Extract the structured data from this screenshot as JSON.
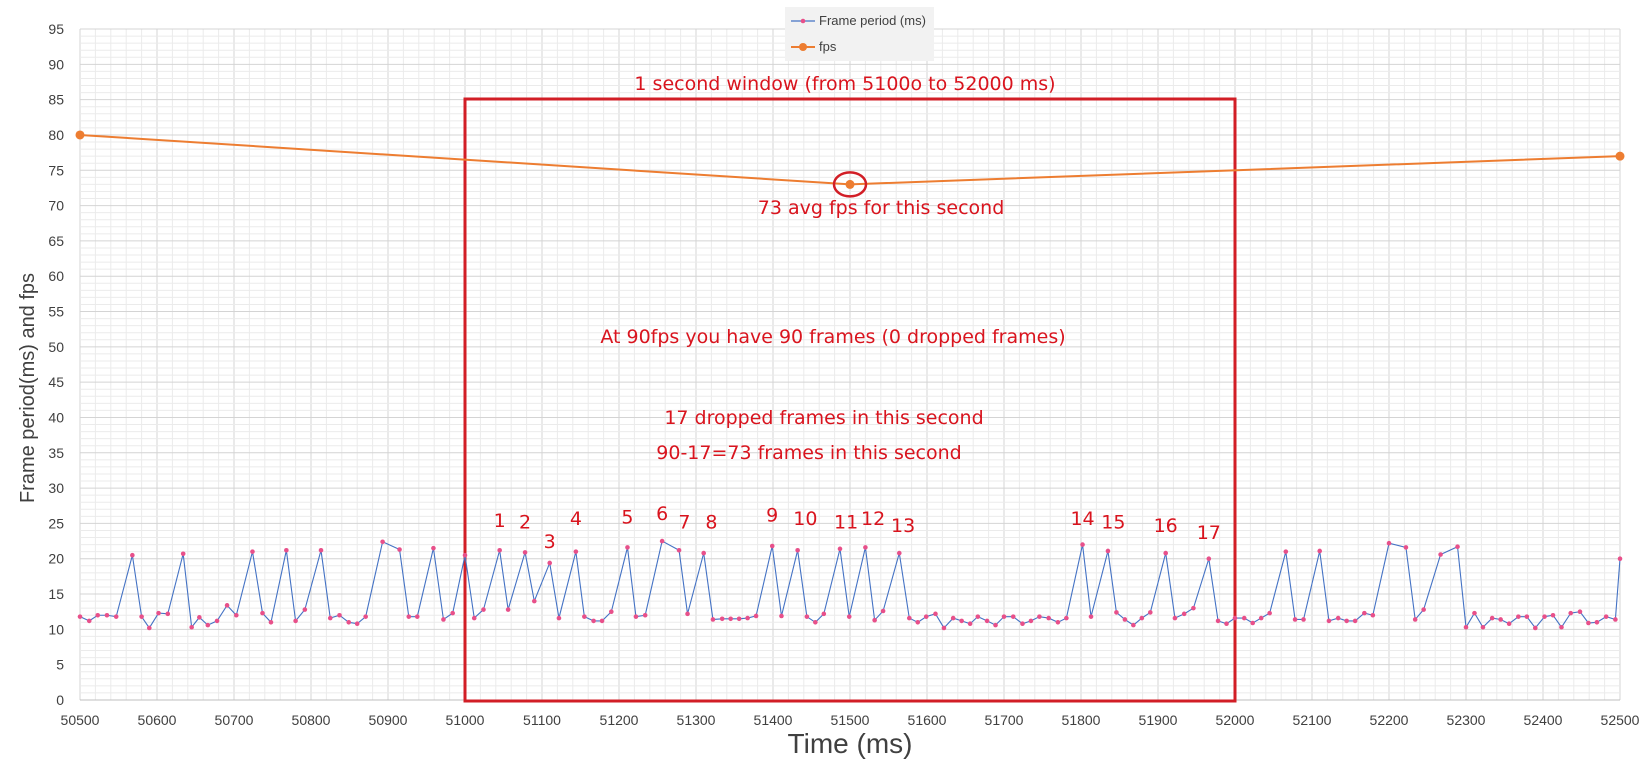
{
  "chart_data": {
    "type": "line",
    "xlabel": "Time (ms)",
    "ylabel": "Frame period(ms) and fps",
    "xlim": [
      50500,
      52500
    ],
    "ylim": [
      0,
      95
    ],
    "x_ticks": [
      50500,
      50600,
      50700,
      50800,
      50900,
      51000,
      51100,
      51200,
      51300,
      51400,
      51500,
      51600,
      51700,
      51800,
      51900,
      52000,
      52100,
      52200,
      52300,
      52400,
      52500
    ],
    "y_ticks": [
      0,
      5,
      10,
      15,
      20,
      25,
      30,
      35,
      40,
      45,
      50,
      55,
      60,
      65,
      70,
      75,
      80,
      85,
      90,
      95
    ],
    "grid": true,
    "legend_position": "top-center",
    "series": [
      {
        "name": "Frame period (ms)",
        "color": "#4472c4",
        "marker_color": "#e8508a",
        "points": [
          [
            50500,
            11.8
          ],
          [
            50512,
            11.2
          ],
          [
            50523,
            12
          ],
          [
            50535,
            12
          ],
          [
            50547,
            11.8
          ],
          [
            50568,
            20.5
          ],
          [
            50580,
            11.8
          ],
          [
            50590,
            10.2
          ],
          [
            50602,
            12.3
          ],
          [
            50614,
            12.2
          ],
          [
            50634,
            20.7
          ],
          [
            50645,
            10.3
          ],
          [
            50655,
            11.7
          ],
          [
            50666,
            10.6
          ],
          [
            50678,
            11.2
          ],
          [
            50691,
            13.4
          ],
          [
            50703,
            12
          ],
          [
            50724,
            21
          ],
          [
            50737,
            12.3
          ],
          [
            50748,
            11
          ],
          [
            50768,
            21.2
          ],
          [
            50780,
            11.2
          ],
          [
            50792,
            12.8
          ],
          [
            50813,
            21.2
          ],
          [
            50825,
            11.6
          ],
          [
            50837,
            12
          ],
          [
            50849,
            11
          ],
          [
            50860,
            10.8
          ],
          [
            50871,
            11.8
          ],
          [
            50893,
            22.4
          ],
          [
            50915,
            21.3
          ],
          [
            50927,
            11.8
          ],
          [
            50938,
            11.8
          ],
          [
            50959,
            21.5
          ],
          [
            50972,
            11.4
          ],
          [
            50984,
            12.3
          ],
          [
            51000,
            20.5
          ],
          [
            51012,
            11.6
          ],
          [
            51024,
            12.8
          ],
          [
            51045,
            21.2
          ],
          [
            51056,
            12.8
          ],
          [
            51078,
            20.9
          ],
          [
            51090,
            14
          ],
          [
            51110,
            19.4
          ],
          [
            51122,
            11.6
          ],
          [
            51144,
            21
          ],
          [
            51155,
            11.8
          ],
          [
            51167,
            11.2
          ],
          [
            51178,
            11.2
          ],
          [
            51190,
            12.5
          ],
          [
            51211,
            21.6
          ],
          [
            51222,
            11.8
          ],
          [
            51234,
            12
          ],
          [
            51256,
            22.5
          ],
          [
            51278,
            21.2
          ],
          [
            51289,
            12.2
          ],
          [
            51310,
            20.8
          ],
          [
            51322,
            11.4
          ],
          [
            51334,
            11.5
          ],
          [
            51345,
            11.5
          ],
          [
            51356,
            11.5
          ],
          [
            51367,
            11.6
          ],
          [
            51378,
            11.9
          ],
          [
            51399,
            21.8
          ],
          [
            51411,
            11.9
          ],
          [
            51432,
            21.2
          ],
          [
            51444,
            11.8
          ],
          [
            51455,
            11
          ],
          [
            51466,
            12.2
          ],
          [
            51487,
            21.4
          ],
          [
            51499,
            11.8
          ],
          [
            51520,
            21.6
          ],
          [
            51532,
            11.3
          ],
          [
            51543,
            12.6
          ],
          [
            51564,
            20.8
          ],
          [
            51577,
            11.6
          ],
          [
            51588,
            11
          ],
          [
            51599,
            11.8
          ],
          [
            51611,
            12.2
          ],
          [
            51622,
            10.2
          ],
          [
            51634,
            11.6
          ],
          [
            51645,
            11.2
          ],
          [
            51656,
            10.8
          ],
          [
            51666,
            11.8
          ],
          [
            51678,
            11.2
          ],
          [
            51689,
            10.6
          ],
          [
            51700,
            11.8
          ],
          [
            51712,
            11.8
          ],
          [
            51724,
            10.8
          ],
          [
            51735,
            11.2
          ],
          [
            51746,
            11.8
          ],
          [
            51758,
            11.6
          ],
          [
            51770,
            11
          ],
          [
            51781,
            11.6
          ],
          [
            51802,
            22
          ],
          [
            51813,
            11.8
          ],
          [
            51835,
            21.1
          ],
          [
            51846,
            12.4
          ],
          [
            51857,
            11.4
          ],
          [
            51868,
            10.6
          ],
          [
            51879,
            11.6
          ],
          [
            51890,
            12.4
          ],
          [
            51910,
            20.8
          ],
          [
            51922,
            11.6
          ],
          [
            51934,
            12.2
          ],
          [
            51946,
            13
          ],
          [
            51966,
            20
          ],
          [
            51978,
            11.2
          ],
          [
            51989,
            10.8
          ],
          [
            52000,
            11.6
          ],
          [
            52012,
            11.6
          ],
          [
            52023,
            10.9
          ],
          [
            52034,
            11.6
          ],
          [
            52045,
            12.3
          ],
          [
            52066,
            21
          ],
          [
            52078,
            11.4
          ],
          [
            52089,
            11.4
          ],
          [
            52110,
            21.1
          ],
          [
            52122,
            11.2
          ],
          [
            52134,
            11.6
          ],
          [
            52145,
            11.2
          ],
          [
            52156,
            11.2
          ],
          [
            52168,
            12.3
          ],
          [
            52179,
            12
          ],
          [
            52200,
            22.2
          ],
          [
            52222,
            21.6
          ],
          [
            52234,
            11.4
          ],
          [
            52245,
            12.8
          ],
          [
            52267,
            20.6
          ],
          [
            52289,
            21.7
          ],
          [
            52300,
            10.3
          ],
          [
            52311,
            12.3
          ],
          [
            52322,
            10.3
          ],
          [
            52334,
            11.6
          ],
          [
            52345,
            11.4
          ],
          [
            52356,
            10.8
          ],
          [
            52368,
            11.8
          ],
          [
            52379,
            11.8
          ],
          [
            52390,
            10.2
          ],
          [
            52402,
            11.8
          ],
          [
            52413,
            12
          ],
          [
            52424,
            10.3
          ],
          [
            52436,
            12.3
          ],
          [
            52448,
            12.5
          ],
          [
            52459,
            10.9
          ],
          [
            52470,
            11
          ],
          [
            52482,
            11.8
          ],
          [
            52494,
            11.4
          ],
          [
            52500,
            20
          ]
        ]
      },
      {
        "name": "fps",
        "color": "#ed7d31",
        "points": [
          [
            50500,
            80
          ],
          [
            51500,
            73
          ],
          [
            52500,
            77
          ]
        ]
      }
    ],
    "annotations": {
      "window_label": "1 second window (from 5100o to 52000 ms)",
      "window_range": [
        51000,
        52000
      ],
      "avg_label": "73 avg fps for this second",
      "avg_point": [
        51500,
        73
      ],
      "line1": "At 90fps you have 90 frames (0 dropped frames)",
      "line2": "17 dropped frames in this second",
      "line3": "90-17=73 frames in this second",
      "drop_numbers": [
        {
          "label": "1",
          "x": 51045,
          "y": 24.5
        },
        {
          "label": "2",
          "x": 51078,
          "y": 24.3
        },
        {
          "label": "3",
          "x": 51110,
          "y": 21.5
        },
        {
          "label": "4",
          "x": 51144,
          "y": 24.8
        },
        {
          "label": "5",
          "x": 51211,
          "y": 25
        },
        {
          "label": "6",
          "x": 51256,
          "y": 25.5
        },
        {
          "label": "7",
          "x": 51285,
          "y": 24.3
        },
        {
          "label": "8",
          "x": 51320,
          "y": 24.3
        },
        {
          "label": "9",
          "x": 51399,
          "y": 25.3
        },
        {
          "label": "10",
          "x": 51442,
          "y": 24.8
        },
        {
          "label": "11",
          "x": 51495,
          "y": 24.3
        },
        {
          "label": "12",
          "x": 51530,
          "y": 24.8
        },
        {
          "label": "13",
          "x": 51569,
          "y": 23.8
        },
        {
          "label": "14",
          "x": 51802,
          "y": 24.8
        },
        {
          "label": "15",
          "x": 51842,
          "y": 24.3
        },
        {
          "label": "16",
          "x": 51910,
          "y": 23.8
        },
        {
          "label": "17",
          "x": 51966,
          "y": 22.8
        }
      ]
    }
  }
}
